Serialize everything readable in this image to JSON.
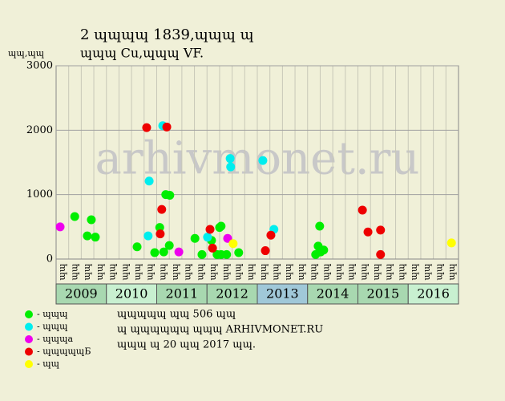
{
  "chart_data": {
    "type": "scatter",
    "title": "2 ɰɰɰɰ 1839,ɰɰɰ ɰ",
    "subtitle": "ɰɰɰ Cu,ɰɰɰ VF.",
    "y_label": "ɰɰ,ɰɰ",
    "watermark": "arhivmonet.ru",
    "xlim": [
      2009,
      2017
    ],
    "ylim": [
      0,
      3000
    ],
    "yticks": [
      0,
      1000,
      2000,
      3000
    ],
    "grid": true,
    "years": [
      "2009",
      "2010",
      "2011",
      "2012",
      "2013",
      "2014",
      "2015",
      "2016"
    ],
    "year_colors": [
      "#a8d8b0",
      "#c8f0d0",
      "#a8d8b0",
      "#a8d8b0",
      "#a0c8d8",
      "#a8d8b0",
      "#a8d8b0",
      "#c8f0d0"
    ],
    "quarter_labels": [
      "ɰɰ",
      "ɰɰ",
      "ɰɰ",
      "ɰɰ"
    ],
    "series": [
      {
        "name": "- ɰɰɰ",
        "color": "#00ee00",
        "x": [
          2009.37,
          2009.62,
          2009.7,
          2009.78,
          2010.61,
          2010.96,
          2011.06,
          2011.14,
          2011.18,
          2011.25,
          2011.26,
          2011.76,
          2011.9,
          2012.09,
          2012.2,
          2012.25,
          2012.28,
          2012.28,
          2012.39,
          2012.63,
          2014.16,
          2014.21,
          2014.24,
          2014.26,
          2014.32
        ],
        "values": [
          660,
          360,
          610,
          340,
          190,
          100,
          490,
          110,
          1000,
          210,
          990,
          320,
          70,
          290,
          70,
          490,
          510,
          70,
          70,
          100,
          70,
          200,
          510,
          110,
          140
        ]
      },
      {
        "name": "- ɰɰɰ",
        "color": "#00eeee",
        "x": [
          2010.85,
          2010.83,
          2011.12,
          2012.01,
          2012.46,
          2012.47,
          2013.11,
          2013.33
        ],
        "values": [
          1210,
          360,
          2070,
          340,
          1560,
          1430,
          1530,
          460
        ]
      },
      {
        "name": "- ɰɰɰa",
        "color": "#ee00ee",
        "x": [
          2009.08,
          2011.44,
          2012.41
        ],
        "values": [
          500,
          110,
          320
        ]
      },
      {
        "name": "- ɰɰɰɰɰБ",
        "color": "#ee0000",
        "x": [
          2010.8,
          2011.2,
          2011.1,
          2011.07,
          2012.06,
          2012.11,
          2013.16,
          2013.27,
          2015.09,
          2015.2,
          2015.45,
          2015.45
        ],
        "values": [
          2040,
          2050,
          770,
          390,
          460,
          170,
          130,
          370,
          760,
          420,
          450,
          70
        ]
      },
      {
        "name": "- ɰɰ",
        "color": "#ffff00",
        "x": [
          2012.52,
          2016.86
        ],
        "values": [
          240,
          250
        ]
      }
    ],
    "notes": [
      "ɰɰɰɰɰ ɰɰ 506 ɰɰ",
      "ɰ ɰɰɰɰɰɰ ɰɰɰ ARHIVMONET.RU",
      "ɰɰɰ ɰ 20 ɰɰ 2017 ɰɰ."
    ]
  }
}
